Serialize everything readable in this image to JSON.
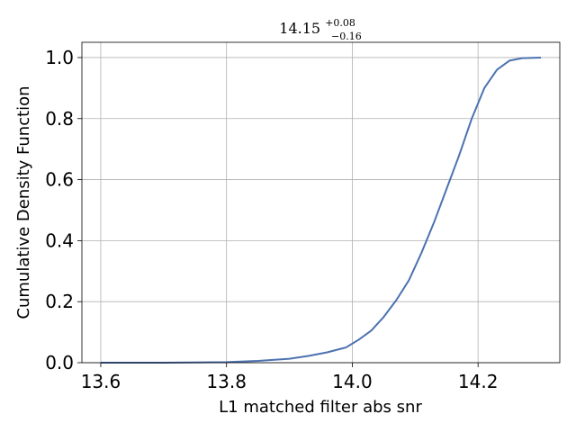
{
  "chart_data": {
    "type": "line",
    "title": {
      "main": "14.15",
      "sup": "+0.08",
      "sub": "−0.16"
    },
    "xlabel": "L1 matched filter abs snr",
    "ylabel": "Cumulative Density Function",
    "xlim": [
      13.57,
      14.33
    ],
    "ylim": [
      0.0,
      1.05
    ],
    "xticks": [
      13.6,
      13.8,
      14.0,
      14.2
    ],
    "xtick_labels": [
      "13.6",
      "13.8",
      "14.0",
      "14.2"
    ],
    "yticks": [
      0.0,
      0.2,
      0.4,
      0.6,
      0.8,
      1.0
    ],
    "ytick_labels": [
      "0.0",
      "0.2",
      "0.4",
      "0.6",
      "0.8",
      "1.0"
    ],
    "grid": true,
    "line_color": "#4c72b0",
    "series": [
      {
        "x": [
          13.6,
          13.7,
          13.8,
          13.85,
          13.9,
          13.93,
          13.96,
          13.99,
          14.01,
          14.03,
          14.05,
          14.07,
          14.09,
          14.11,
          14.13,
          14.15,
          14.17,
          14.19,
          14.21,
          14.23,
          14.25,
          14.27,
          14.3
        ],
        "y": [
          0.0,
          0.0,
          0.002,
          0.006,
          0.013,
          0.022,
          0.034,
          0.05,
          0.075,
          0.105,
          0.15,
          0.205,
          0.27,
          0.36,
          0.46,
          0.57,
          0.68,
          0.8,
          0.9,
          0.96,
          0.99,
          0.998,
          1.0
        ]
      }
    ]
  }
}
